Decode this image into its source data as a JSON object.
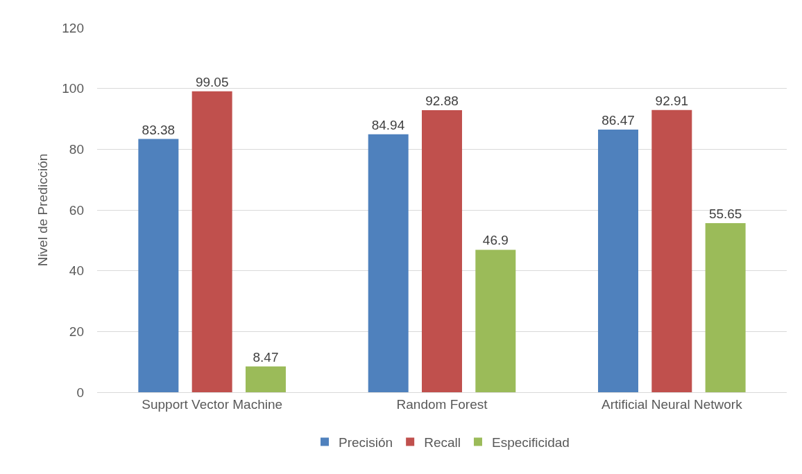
{
  "chart_data": {
    "type": "bar",
    "ylabel": "Nivel de Predicción",
    "categories": [
      "Support Vector Machine",
      "Random Forest",
      "Artificial Neural Network"
    ],
    "series": [
      {
        "name": "Precisión",
        "color": "#4f81bd",
        "values": [
          83.38,
          84.94,
          86.47
        ]
      },
      {
        "name": "Recall",
        "color": "#c0504d",
        "values": [
          99.05,
          92.88,
          92.91
        ]
      },
      {
        "name": "Especificidad",
        "color": "#9bbb59",
        "values": [
          8.47,
          46.9,
          55.65
        ]
      }
    ],
    "ylim": [
      0,
      120
    ],
    "yticks": [
      0,
      20,
      40,
      60,
      80,
      100,
      120
    ],
    "grid": "y",
    "legend": "bottom",
    "data_labels": true
  }
}
